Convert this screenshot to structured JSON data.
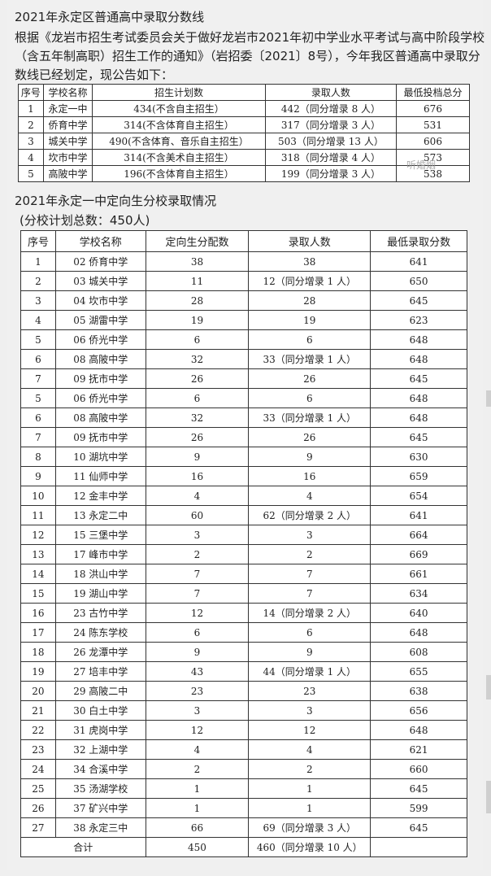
{
  "title": "2021年永定区普通高中录取分数线",
  "paragraph": "根据《龙岩市招生考试委员会关于做好龙岩市2021年初中学业水平考试与高中阶段学校（含五年制高职）招生工作的通知》（岩招委〔2021〕8号），今年我区普通高中录取分数线已经划定，现公告如下：",
  "table1": {
    "headers": [
      "序号",
      "学校名称",
      "招生计划数",
      "录取人数",
      "最低投档总分"
    ],
    "rows": [
      [
        "1",
        "永定一中",
        "434(不含自主招生）",
        "442（同分增录 8 人）",
        "676"
      ],
      [
        "2",
        "侨育中学",
        "314(不含体育自主招生）",
        "317（同分增录 3 人）",
        "531"
      ],
      [
        "3",
        "城关中学",
        "490(不含体育、音乐自主招生）",
        "503（同分增录 13 人）",
        "606"
      ],
      [
        "4",
        "坎市中学",
        "314(不含美术自主招生）",
        "318（同分增录 4 人）",
        "573"
      ],
      [
        "5",
        "高陂中学",
        "196(不含体育自主招生）",
        "199（同分增录 3 人）",
        "538"
      ]
    ]
  },
  "watermark": "听婚烟",
  "section2": {
    "title": "2021年永定一中定向生分校录取情况",
    "subtitle": "(分校计划总数：450人)"
  },
  "table2": {
    "headers": [
      "序号",
      "学校名称",
      "定向生分配数",
      "录取人数",
      "最低录取分数"
    ],
    "rows": [
      [
        "1",
        "02 侨育中学",
        "38",
        "38",
        "641"
      ],
      [
        "2",
        "03 城关中学",
        "11",
        "12（同分增录 1 人）",
        "650"
      ],
      [
        "3",
        "04 坎市中学",
        "28",
        "28",
        "645"
      ],
      [
        "4",
        "05 湖雷中学",
        "19",
        "19",
        "623"
      ],
      [
        "5",
        "06 侨光中学",
        "6",
        "6",
        "648"
      ],
      [
        "6",
        "08 高陂中学",
        "32",
        "33（同分增录 1 人）",
        "648"
      ],
      [
        "7",
        "09 抚市中学",
        "26",
        "26",
        "645"
      ],
      [
        "5",
        "06 侨光中学",
        "6",
        "6",
        "648"
      ],
      [
        "6",
        "08 高陂中学",
        "32",
        "33（同分增录 1 人）",
        "648"
      ],
      [
        "7",
        "09 抚市中学",
        "26",
        "26",
        "645"
      ],
      [
        "8",
        "10 湖坑中学",
        "9",
        "9",
        "630"
      ],
      [
        "9",
        "11 仙师中学",
        "16",
        "16",
        "659"
      ],
      [
        "10",
        "12 金丰中学",
        "4",
        "4",
        "654"
      ],
      [
        "11",
        "13 永定二中",
        "60",
        "62（同分增录 2 人）",
        "641"
      ],
      [
        "12",
        "15 三堡中学",
        "3",
        "3",
        "664"
      ],
      [
        "13",
        "17 峰市中学",
        "2",
        "2",
        "669"
      ],
      [
        "14",
        "18 洪山中学",
        "7",
        "7",
        "661"
      ],
      [
        "15",
        "19 湖山中学",
        "7",
        "7",
        "634"
      ],
      [
        "16",
        "23 古竹中学",
        "12",
        "14（同分增录 2 人）",
        "640"
      ],
      [
        "17",
        "24 陈东学校",
        "6",
        "6",
        "648"
      ],
      [
        "18",
        "26 龙潭中学",
        "9",
        "9",
        "608"
      ],
      [
        "19",
        "27 培丰中学",
        "43",
        "44（同分增录 1 人）",
        "655"
      ],
      [
        "20",
        "29 高陂二中",
        "23",
        "23",
        "638"
      ],
      [
        "21",
        "30 白土中学",
        "3",
        "3",
        "656"
      ],
      [
        "22",
        "31 虎岗中学",
        "12",
        "12",
        "648"
      ],
      [
        "23",
        "32 上湖中学",
        "4",
        "4",
        "621"
      ],
      [
        "24",
        "34 合溪中学",
        "2",
        "2",
        "660"
      ],
      [
        "25",
        "35 汤湖学校",
        "1",
        "1",
        "645"
      ],
      [
        "26",
        "37 矿兴中学",
        "1",
        "1",
        "599"
      ],
      [
        "27",
        "38 永定三中",
        "66",
        "69（同分增录 3 人）",
        "645"
      ]
    ],
    "total": {
      "label": "合计",
      "planned": "450",
      "admitted": "460（同分增录 10 人）",
      "min": ""
    }
  }
}
